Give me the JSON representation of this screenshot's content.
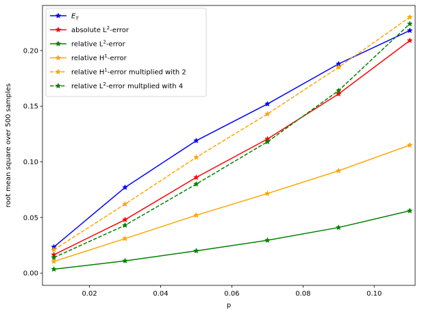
{
  "chart_data": {
    "type": "line",
    "xlabel": "p",
    "ylabel": "root mean square over 500 samples",
    "xlim": [
      0.0068,
      0.1115
    ],
    "ylim": [
      -0.011,
      0.2405
    ],
    "x_ticks": [
      0.02,
      0.04,
      0.06,
      0.08,
      0.1
    ],
    "x_tick_labels": [
      "0.02",
      "0.04",
      "0.06",
      "0.08",
      "0.10"
    ],
    "y_ticks": [
      0.0,
      0.05,
      0.1,
      0.15,
      0.2
    ],
    "y_tick_labels": [
      "0.00",
      "0.05",
      "0.10",
      "0.15",
      "0.20"
    ],
    "grid": false,
    "legend_position": "top-left",
    "x": [
      0.01,
      0.03,
      0.05,
      0.07,
      0.09,
      0.11
    ],
    "series": [
      {
        "name": "E_T",
        "legend_main": "E",
        "legend_sub": "T",
        "legend_tail": "",
        "color": "#0000ff",
        "style": "solid",
        "values": [
          0.0235,
          0.077,
          0.119,
          0.152,
          0.188,
          0.218
        ]
      },
      {
        "name": "absolute L^2-error",
        "legend_main": "absolute L",
        "legend_sup": "2",
        "legend_tail": "-error",
        "color": "#ff0000",
        "style": "solid",
        "values": [
          0.0165,
          0.048,
          0.086,
          0.1205,
          0.161,
          0.209
        ]
      },
      {
        "name": "relative L^2-error",
        "legend_main": "relative L",
        "legend_sup": "2",
        "legend_tail": "-error",
        "color": "#008000",
        "style": "solid",
        "values": [
          0.0035,
          0.011,
          0.02,
          0.0295,
          0.041,
          0.056
        ]
      },
      {
        "name": "relative H^1-error",
        "legend_main": "relative H",
        "legend_sup": "1",
        "legend_tail": "-error",
        "color": "#ffa500",
        "style": "solid",
        "values": [
          0.0105,
          0.031,
          0.052,
          0.0715,
          0.092,
          0.115
        ]
      },
      {
        "name": "relative H^1-error multiplied with 2",
        "legend_main": "relative H",
        "legend_sup": "1",
        "legend_tail": "-error multiplied with 2",
        "color": "#ffa500",
        "style": "dashed",
        "values": [
          0.021,
          0.062,
          0.104,
          0.143,
          0.185,
          0.23
        ]
      },
      {
        "name": "relative L^2-error multplied with 4",
        "legend_main": "relative L",
        "legend_sup": "2",
        "legend_tail": "-error multplied with 4",
        "color": "#008000",
        "style": "dashed",
        "values": [
          0.014,
          0.043,
          0.08,
          0.118,
          0.164,
          0.224
        ]
      }
    ]
  }
}
